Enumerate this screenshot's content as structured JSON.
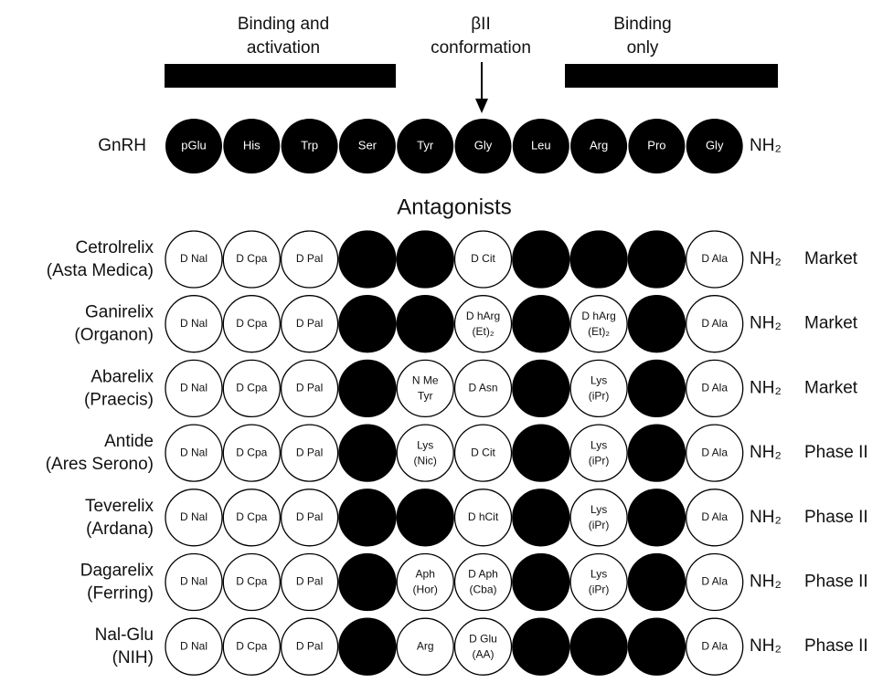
{
  "header": {
    "left": [
      "Binding and",
      "activation"
    ],
    "middle": [
      "βII",
      "conformation"
    ],
    "right": [
      "Binding",
      "only"
    ]
  },
  "native": {
    "name": "GnRH",
    "residues": [
      "pGlu",
      "His",
      "Trp",
      "Ser",
      "Tyr",
      "Gly",
      "Leu",
      "Arg",
      "Pro",
      "Gly"
    ],
    "terminus": "NH₂"
  },
  "section_title": "Antagonists",
  "rows": [
    {
      "name": "Cetrolrelix",
      "company": "(Asta Medica)",
      "residues": [
        [
          "D Nal"
        ],
        [
          "D Cpa"
        ],
        [
          "D Pal"
        ],
        null,
        null,
        [
          "D Cit"
        ],
        null,
        null,
        null,
        [
          "D Ala"
        ]
      ],
      "terminus": "NH₂",
      "status": "Market"
    },
    {
      "name": "Ganirelix",
      "company": "(Organon)",
      "residues": [
        [
          "D Nal"
        ],
        [
          "D Cpa"
        ],
        [
          "D Pal"
        ],
        null,
        null,
        [
          "D hArg",
          "(Et)₂"
        ],
        null,
        [
          "D hArg",
          "(Et)₂"
        ],
        null,
        [
          "D Ala"
        ]
      ],
      "terminus": "NH₂",
      "status": "Market"
    },
    {
      "name": "Abarelix",
      "company": "(Praecis)",
      "residues": [
        [
          "D Nal"
        ],
        [
          "D Cpa"
        ],
        [
          "D Pal"
        ],
        null,
        [
          "N Me",
          "Tyr"
        ],
        [
          "D Asn"
        ],
        null,
        [
          "Lys",
          "(iPr)"
        ],
        null,
        [
          "D Ala"
        ]
      ],
      "terminus": "NH₂",
      "status": "Market"
    },
    {
      "name": "Antide",
      "company": "(Ares Serono)",
      "residues": [
        [
          "D Nal"
        ],
        [
          "D Cpa"
        ],
        [
          "D Pal"
        ],
        null,
        [
          "Lys",
          "(Nic)"
        ],
        [
          "D Cit"
        ],
        null,
        [
          "Lys",
          "(iPr)"
        ],
        null,
        [
          "D Ala"
        ]
      ],
      "terminus": "NH₂",
      "status": "Phase II"
    },
    {
      "name": "Teverelix",
      "company": "(Ardana)",
      "residues": [
        [
          "D Nal"
        ],
        [
          "D Cpa"
        ],
        [
          "D Pal"
        ],
        null,
        null,
        [
          "D hCit"
        ],
        null,
        [
          "Lys",
          "(iPr)"
        ],
        null,
        [
          "D Ala"
        ]
      ],
      "terminus": "NH₂",
      "status": "Phase II"
    },
    {
      "name": "Dagarelix",
      "company": "(Ferring)",
      "residues": [
        [
          "D Nal"
        ],
        [
          "D Cpa"
        ],
        [
          "D Pal"
        ],
        null,
        [
          "Aph",
          "(Hor)"
        ],
        [
          "D Aph",
          "(Cba)"
        ],
        null,
        [
          "Lys",
          "(iPr)"
        ],
        null,
        [
          "D Ala"
        ]
      ],
      "terminus": "NH₂",
      "status": "Phase II"
    },
    {
      "name": "Nal-Glu",
      "company": "(NIH)",
      "residues": [
        [
          "D Nal"
        ],
        [
          "D Cpa"
        ],
        [
          "D Pal"
        ],
        null,
        [
          "Arg"
        ],
        [
          "D Glu",
          "(AA)"
        ],
        null,
        null,
        null,
        [
          "D Ala"
        ]
      ],
      "terminus": "NH₂",
      "status": "Phase II"
    }
  ]
}
